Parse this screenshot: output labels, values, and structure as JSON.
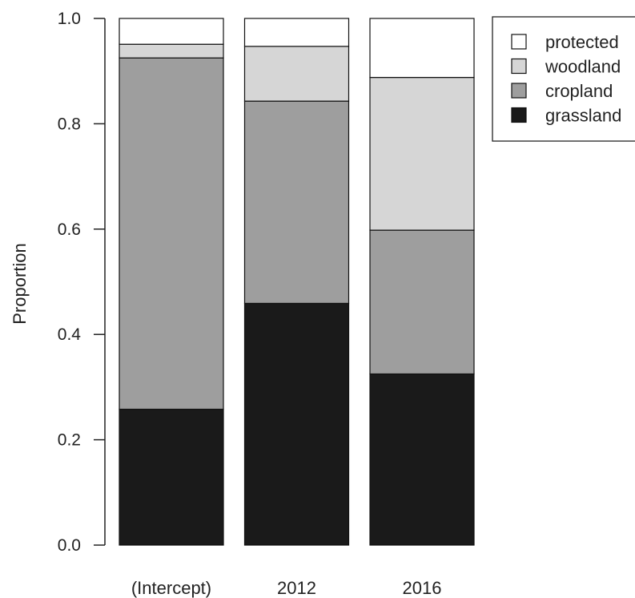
{
  "chart_data": {
    "type": "bar",
    "stacked": true,
    "title": "",
    "xlabel": "",
    "ylabel": "Proportion",
    "ylim": [
      0,
      1
    ],
    "y_ticks": [
      "0.0",
      "0.2",
      "0.4",
      "0.6",
      "0.8",
      "1.0"
    ],
    "categories": [
      "(Intercept)",
      "2012",
      "2016"
    ],
    "series": [
      {
        "name": "grassland",
        "color": "#1a1a1a",
        "values": [
          0.258,
          0.459,
          0.325
        ]
      },
      {
        "name": "cropland",
        "color": "#9e9e9e",
        "values": [
          0.667,
          0.384,
          0.273
        ]
      },
      {
        "name": "woodland",
        "color": "#d6d6d6",
        "values": [
          0.026,
          0.104,
          0.29
        ]
      },
      {
        "name": "protected",
        "color": "#ffffff",
        "values": [
          0.049,
          0.053,
          0.112
        ]
      }
    ],
    "legend": {
      "placement": "top-right",
      "order": [
        "protected",
        "woodland",
        "cropland",
        "grassland"
      ]
    },
    "grid": false
  }
}
